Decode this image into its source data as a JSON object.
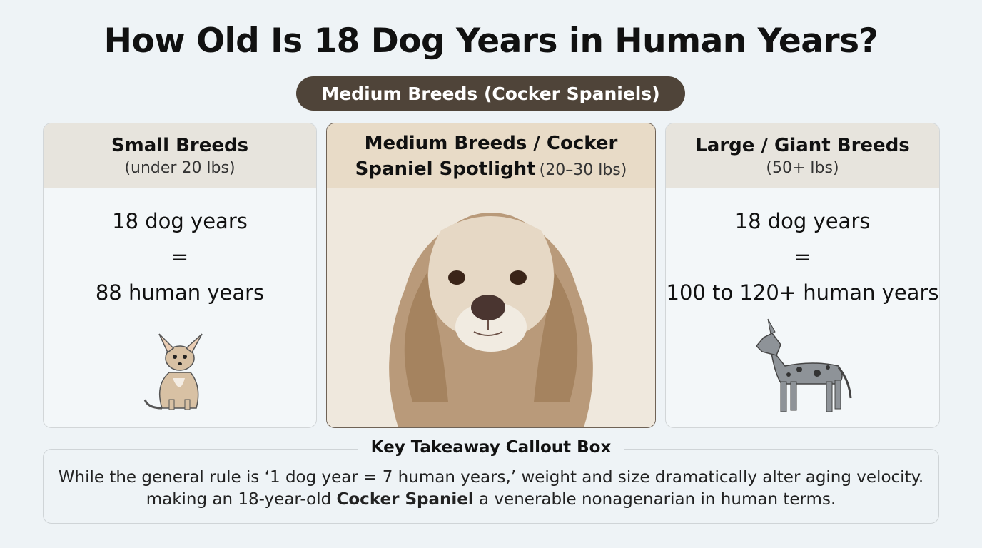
{
  "header": {
    "title": "How Old Is 18 Dog Years in Human Years?",
    "badge": "Medium Breeds (Cocker Spaniels)"
  },
  "cards": [
    {
      "title": "Small Breeds",
      "subtitle": "(under 20 lbs)",
      "lines": [
        "18 dog years",
        "=",
        "88 human years"
      ]
    },
    {
      "title": "Medium Breeds / Cocker Spaniel Spotlight",
      "subtitle": "(20–30 lbs)"
    },
    {
      "title": "Large / Giant Breeds",
      "subtitle": "(50+ lbs)",
      "lines": [
        "18 dog years",
        "=",
        "100 to 120+ human years"
      ]
    }
  ],
  "callout": {
    "title": "Key Takeaway Callout Box",
    "line1": "While the general rule is ‘1 dog year = 7 human years,’ weight and size dramatically alter aging velocity.",
    "line2": [
      "making an 18-year-old ",
      "Cocker Spaniel",
      " a venerable nonagenarian in human terms."
    ]
  }
}
